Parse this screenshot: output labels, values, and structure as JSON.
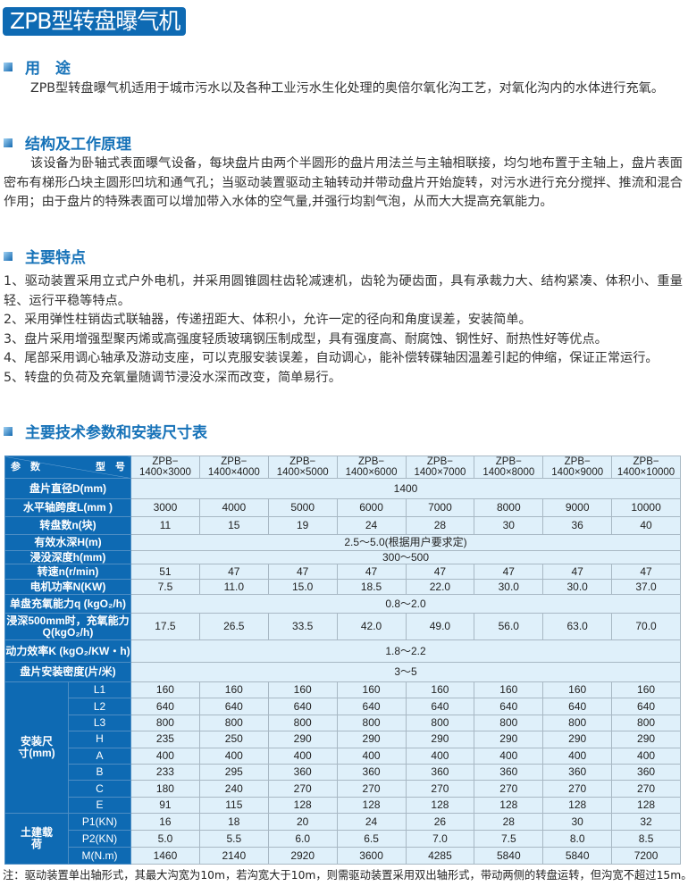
{
  "title": "ZPB型转盘曝气机",
  "sections": {
    "usage": {
      "heading": "用　途",
      "text": "ZPB型转盘曝气机适用于城市污水以及各种工业污水生化处理的奥倍尔氧化沟工艺，对氧化沟内的水体进行充氧。"
    },
    "structure": {
      "heading": "结构及工作原理",
      "text": "该设备为卧轴式表面曝气设备，每块盘片由两个半圆形的盘片用法兰与主轴相联接，均匀地布置于主轴上，盘片表面密布有梯形凸块主圆形凹坑和通气孔；当驱动装置驱动主轴转动并带动盘片开始旋转，对污水进行充分搅拌、推流和混合作用；由于盘片的特殊表面可以增加带入水体的空气量,并强行均割气泡，从而大大提高充氧能力。"
    },
    "features": {
      "heading": "主要特点",
      "items": [
        "1、驱动装置采用立式户外电机，并采用圆锥圆柱齿轮减速机，齿轮为硬齿面，具有承裁力大、结构紧凑、体积小、重量轻、运行平稳等特点。",
        "2、采用弹性柱销齿式联轴器，传递扭距大、体积小，允许一定的径向和角度误差，安装简单。",
        "3、盘片采用增强型聚丙烯或高强度轻质玻璃钢压制成型，具有强度高、耐腐蚀、钢性好、耐热性好等优点。",
        "4、尾部采用调心轴承及游动支座，可以克服安装误差，自动调心，能补偿转碟轴因温差引起的伸缩，保证正常运行。",
        "5、转盘的负荷及充氧量随调节浸没水深而改变，简单易行。"
      ]
    },
    "table": {
      "heading": "主要技术参数和安装尺寸表"
    }
  },
  "table": {
    "corner_model": "型　号",
    "corner_param": "参　数",
    "models": [
      [
        "ZPB−",
        "1400×3000"
      ],
      [
        "ZPB−",
        "1400×4000"
      ],
      [
        "ZPB−",
        "1400×5000"
      ],
      [
        "ZPB−",
        "1400×6000"
      ],
      [
        "ZPB−",
        "1400×7000"
      ],
      [
        "ZPB−",
        "1400×8000"
      ],
      [
        "ZPB−",
        "1400×9000"
      ],
      [
        "ZPB−",
        "1400×10000"
      ]
    ],
    "rows": [
      {
        "label": "盘片直径D(mm)",
        "span": "1400"
      },
      {
        "label": "水平轴跨度L(mm )",
        "values": [
          "3000",
          "4000",
          "5000",
          "6000",
          "7000",
          "8000",
          "9000",
          "10000"
        ]
      },
      {
        "label": "转盘数n(块)",
        "values": [
          "11",
          "15",
          "19",
          "24",
          "28",
          "30",
          "36",
          "40"
        ]
      },
      {
        "label": "有效水深H(m)",
        "span": "2.5～5.0(根据用户要求定)"
      },
      {
        "label": "浸没深度h(mm)",
        "span": "300～500"
      },
      {
        "label": "转速n(r/min)",
        "values": [
          "51",
          "47",
          "47",
          "47",
          "47",
          "47",
          "47",
          "47"
        ]
      },
      {
        "label": "电机功率N(KW)",
        "values": [
          "7.5",
          "11.0",
          "15.0",
          "18.5",
          "22.0",
          "30.0",
          "30.0",
          "37.0"
        ]
      },
      {
        "label": "单盘充氧能力q (kgO₂/h)",
        "span": "0.8～2.0"
      },
      {
        "label": "浸深500mm时，充氧能力Q(kgO₂/h)",
        "values": [
          "17.5",
          "26.5",
          "33.5",
          "42.0",
          "49.0",
          "56.0",
          "63.0",
          "70.0"
        ]
      },
      {
        "label": "动力效率K (kgO₂/KW・h)",
        "span": "1.8～2.2"
      },
      {
        "label": "盘片安装密度(片/米)",
        "span": "3～5"
      }
    ],
    "groups": [
      {
        "label": "安装尺寸(mm)",
        "rows": [
          {
            "label": "L1",
            "values": [
              "160",
              "160",
              "160",
              "160",
              "160",
              "160",
              "160",
              "160"
            ]
          },
          {
            "label": "L2",
            "values": [
              "640",
              "640",
              "640",
              "640",
              "640",
              "640",
              "640",
              "640"
            ]
          },
          {
            "label": "L3",
            "values": [
              "800",
              "800",
              "800",
              "800",
              "800",
              "800",
              "800",
              "800"
            ]
          },
          {
            "label": "H",
            "values": [
              "235",
              "250",
              "290",
              "290",
              "290",
              "290",
              "290",
              "290"
            ]
          },
          {
            "label": "A",
            "values": [
              "400",
              "400",
              "400",
              "400",
              "400",
              "400",
              "400",
              "400"
            ]
          },
          {
            "label": "B",
            "values": [
              "233",
              "295",
              "360",
              "360",
              "360",
              "360",
              "360",
              "360"
            ]
          },
          {
            "label": "C",
            "values": [
              "180",
              "240",
              "270",
              "270",
              "270",
              "270",
              "270",
              "270"
            ]
          },
          {
            "label": "E",
            "values": [
              "91",
              "115",
              "128",
              "128",
              "128",
              "128",
              "128",
              "128"
            ]
          }
        ]
      },
      {
        "label": "土建载荷",
        "rows": [
          {
            "label": "P1(KN)",
            "values": [
              "16",
              "18",
              "20",
              "24",
              "26",
              "28",
              "30",
              "32"
            ]
          },
          {
            "label": "P2(KN)",
            "values": [
              "5.0",
              "5.5",
              "6.0",
              "6.5",
              "7.0",
              "7.5",
              "8.0",
              "8.5"
            ]
          },
          {
            "label": "M(N.m)",
            "values": [
              "1460",
              "2140",
              "2920",
              "3600",
              "4285",
              "5840",
              "5840",
              "7200"
            ]
          }
        ]
      }
    ]
  },
  "note": "注：驱动装置单出轴形式，其最大沟宽为10m，若沟宽大于10m，则需驱动装置采用双出轴形式，带动两侧的转盘运转，但沟宽不超过15m。",
  "colors": {
    "brand_blue": "#0e6ab3",
    "cell_bg": "#dff0fa",
    "heading": "#1672b8"
  }
}
